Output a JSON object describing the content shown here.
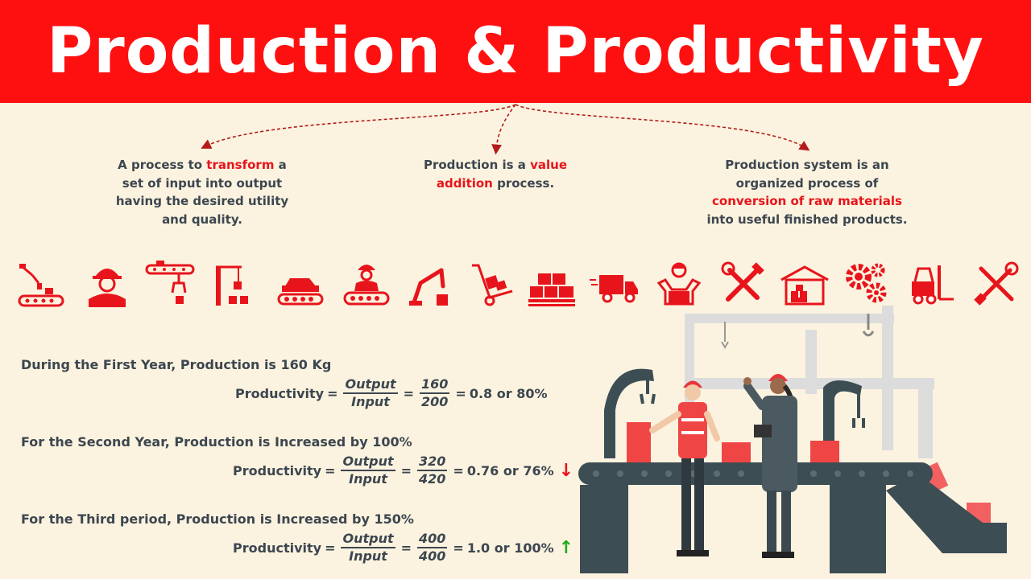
{
  "title": "Production & Productivity",
  "definitions": [
    {
      "before": "A process to ",
      "highlight": "transform",
      "after": " a set of input into output having the desired utility and quality."
    },
    {
      "before": "Production is a ",
      "highlight": "value addition",
      "after": " process."
    },
    {
      "before": "Production system is an organized process of ",
      "highlight": "conversion of raw materials",
      "after": " into useful finished products."
    }
  ],
  "icons": [
    "robot-arm-conveyor-icon",
    "worker-helmet-icon",
    "conveyor-gripper-icon",
    "crane-boxes-icon",
    "car-conveyor-icon",
    "worker-conveyor-icon",
    "robot-arm-icon",
    "hand-truck-icon",
    "pallet-boxes-icon",
    "delivery-truck-icon",
    "worker-box-icon",
    "tools-cross-icon",
    "warehouse-icon",
    "gears-icon",
    "forklift-icon",
    "wrench-screwdriver-icon"
  ],
  "calculations": [
    {
      "title": "During the First Year, Production is 160 Kg",
      "label": "Productivity",
      "num_word": "Output",
      "den_word": "Input",
      "num": "160",
      "den": "200",
      "result": "0.8 or 80%",
      "trend": ""
    },
    {
      "title": "For the Second Year, Production is Increased by 100%",
      "label": "Productivity",
      "num_word": "Output",
      "den_word": "Input",
      "num": "320",
      "den": "420",
      "result": "0.76 or 76%",
      "trend": "↓"
    },
    {
      "title": "For the Third period, Production is Increased by 150%",
      "label": "Productivity",
      "num_word": "Output",
      "den_word": "Input",
      "num": "400",
      "den": "400",
      "result": "1.0 or 100%",
      "trend": "↑"
    }
  ],
  "colors": {
    "accent": "#ff1010",
    "background": "#fbf3df",
    "text": "#3c4650",
    "up": "#22aa22",
    "down": "#e8141c"
  }
}
